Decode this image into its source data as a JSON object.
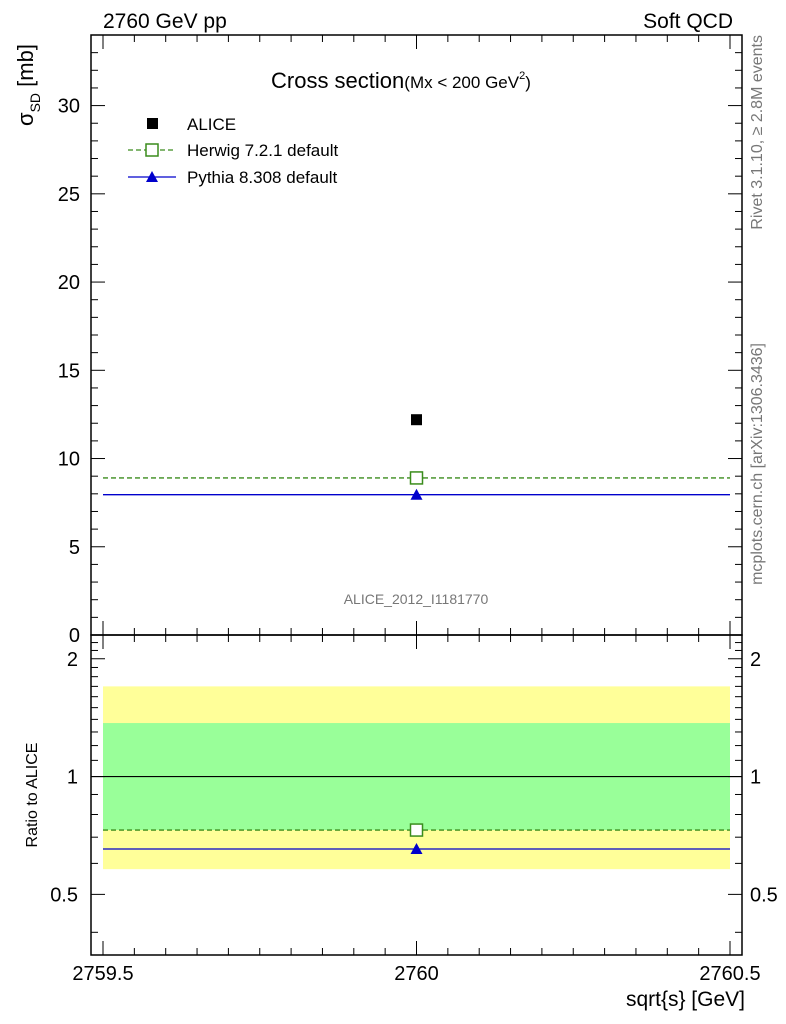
{
  "header": {
    "left": "2760 GeV pp",
    "right": "Soft QCD"
  },
  "side": {
    "rivet": "Rivet 3.1.10, ≥ 2.8M events",
    "mcplots": "mcplots.cern.ch [arXiv:1306.3436]"
  },
  "chart_data": [
    {
      "type": "scatter",
      "title": "Cross section",
      "title_cut": "(Mx < 200 GeV",
      "title_sup": "2",
      "title_close": ")",
      "ylabel_main": "σ",
      "ylabel_sub": "SD",
      "ylabel_unit": " [mb]",
      "analysis_tag": "ALICE_2012_I1181770",
      "x_range": [
        2759.5,
        2760.5
      ],
      "ylim": [
        0,
        34
      ],
      "y_ticks": [
        0,
        5,
        10,
        15,
        20,
        25,
        30
      ],
      "y_tick_labels": [
        "0",
        "5",
        "10",
        "15",
        "20",
        "25",
        "30"
      ],
      "legend_position": "top-left",
      "series": [
        {
          "name": "ALICE",
          "x": [
            2760
          ],
          "y": [
            12.2
          ],
          "marker": "filled-square",
          "color": "#000000"
        },
        {
          "name": "Herwig 7.2.1 default",
          "x": [
            2760
          ],
          "y": [
            8.9
          ],
          "marker": "open-square",
          "color": "#3a8c1c",
          "line": "dashed"
        },
        {
          "name": "Pythia 8.308 default",
          "x": [
            2760
          ],
          "y": [
            7.95
          ],
          "marker": "filled-triangle",
          "color": "#0000cc",
          "line": "solid"
        }
      ]
    },
    {
      "type": "line",
      "ylabel": "Ratio to ALICE",
      "xlabel": "sqrt{s} [GeV]",
      "x_range": [
        2759.5,
        2760.5
      ],
      "x_ticks": [
        2759.5,
        2760,
        2760.5
      ],
      "x_tick_labels": [
        "2759.5",
        "2760",
        "2760.5"
      ],
      "ylim": [
        0.35,
        2.3
      ],
      "y_ticks": [
        0.5,
        1,
        2
      ],
      "y_tick_labels": [
        "0.5",
        "1",
        "2"
      ],
      "y_scale": "log",
      "bands": [
        {
          "name": "outer",
          "low": 0.58,
          "high": 1.7,
          "color": "#ffff99"
        },
        {
          "name": "inner",
          "low": 0.73,
          "high": 1.37,
          "color": "#99ff99"
        }
      ],
      "series": [
        {
          "name": "Herwig 7.2.1 default",
          "x": [
            2760
          ],
          "y": [
            0.73
          ],
          "marker": "open-square",
          "color": "#3a8c1c",
          "line": "dashed"
        },
        {
          "name": "Pythia 8.308 default",
          "x": [
            2760
          ],
          "y": [
            0.653
          ],
          "marker": "filled-triangle",
          "color": "#0000cc",
          "line": "solid"
        }
      ]
    }
  ]
}
